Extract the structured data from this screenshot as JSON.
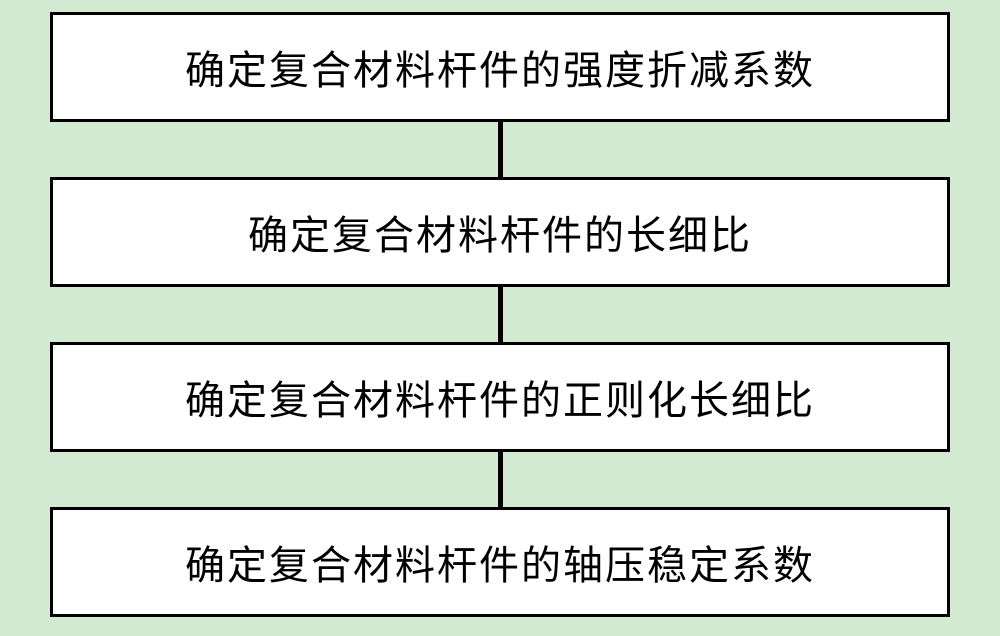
{
  "flowchart": {
    "type": "flowchart",
    "direction": "vertical",
    "background_color": "#d2e9d2",
    "box_background": "#ffffff",
    "box_border_color": "#000000",
    "box_border_width": 3,
    "connector_color": "#000000",
    "connector_width": 5,
    "connector_height": 55,
    "font_family": "SimSun",
    "font_size": 40,
    "steps": [
      {
        "label": "确定复合材料杆件的强度折减系数"
      },
      {
        "label": "确定复合材料杆件的长细比"
      },
      {
        "label": "确定复合材料杆件的正则化长细比"
      },
      {
        "label": "确定复合材料杆件的轴压稳定系数"
      }
    ]
  }
}
